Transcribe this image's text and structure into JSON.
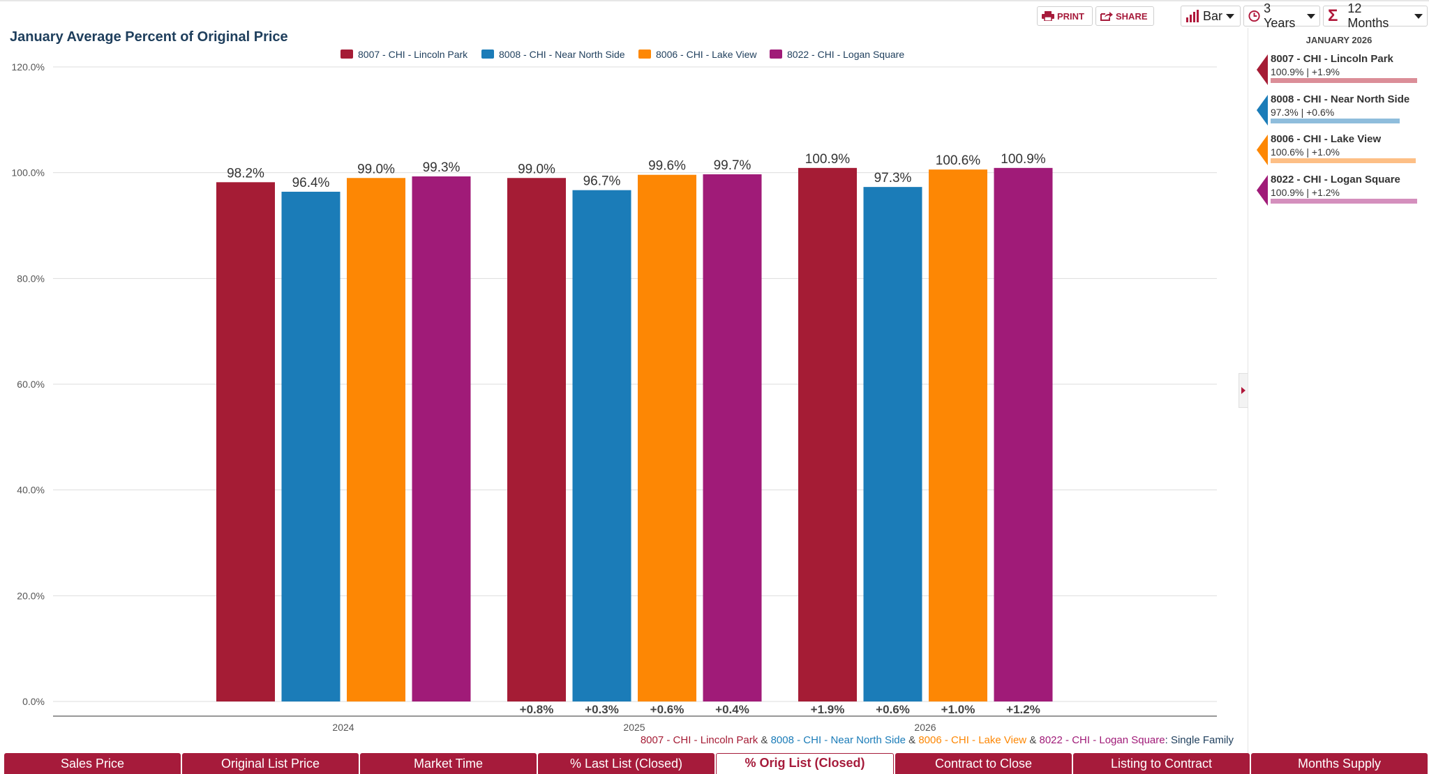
{
  "toolbar": {
    "print_label": "PRINT",
    "share_label": "SHARE",
    "chart_type_label": "Bar",
    "period_label": "3 Years",
    "aggregate_label": "12 Months",
    "aggregate_symbol": "Σ"
  },
  "chart_data": {
    "type": "bar",
    "title": "January Average Percent of Original Price",
    "categories": [
      "2024",
      "2025",
      "2026"
    ],
    "ylim": [
      0,
      120
    ],
    "y_ticks": [
      "0.0%",
      "20.0%",
      "40.0%",
      "60.0%",
      "80.0%",
      "100.0%",
      "120.0%"
    ],
    "y_tick_values": [
      0,
      20,
      40,
      60,
      80,
      100,
      120
    ],
    "grid": true,
    "legend_position": "top-center",
    "series": [
      {
        "name": "8007 - CHI - Lincoln Park",
        "color": "#a51c35",
        "values": [
          98.2,
          99.0,
          100.9
        ],
        "labels": [
          "98.2%",
          "99.0%",
          "100.9%"
        ],
        "changes": [
          "",
          "+0.8%",
          "+1.9%"
        ]
      },
      {
        "name": "8008 - CHI - Near North Side",
        "color": "#1b7cb8",
        "values": [
          96.4,
          96.7,
          97.3
        ],
        "labels": [
          "96.4%",
          "96.7%",
          "97.3%"
        ],
        "changes": [
          "",
          "+0.3%",
          "+0.6%"
        ]
      },
      {
        "name": "8006 - CHI - Lake View",
        "color": "#fd8704",
        "values": [
          99.0,
          99.6,
          100.6
        ],
        "labels": [
          "99.0%",
          "99.6%",
          "100.6%"
        ],
        "changes": [
          "",
          "+0.6%",
          "+1.0%"
        ]
      },
      {
        "name": "8022 - CHI - Logan Square",
        "color": "#a01b78",
        "values": [
          99.3,
          99.7,
          100.9
        ],
        "labels": [
          "99.3%",
          "99.7%",
          "100.9%"
        ],
        "changes": [
          "",
          "+0.4%",
          "+1.2%"
        ]
      }
    ]
  },
  "side_panel": {
    "title": "JANUARY 2026",
    "items": [
      {
        "name": "8007 - CHI - Lincoln Park",
        "value_text": "100.9% | +1.9%",
        "color": "#a51c35",
        "light_color": "#db8e98",
        "bar_fraction": 1.0
      },
      {
        "name": "8008 - CHI - Near North Side",
        "value_text": "97.3% | +0.6%",
        "color": "#1b7cb8",
        "light_color": "#8fbddc",
        "bar_fraction": 0.88
      },
      {
        "name": "8006 - CHI - Lake View",
        "value_text": "100.6% | +1.0%",
        "color": "#fd8704",
        "light_color": "#fdbf86",
        "bar_fraction": 0.99
      },
      {
        "name": "8022 - CHI - Logan Square",
        "value_text": "100.9% | +1.2%",
        "color": "#a01b78",
        "light_color": "#d48fbd",
        "bar_fraction": 1.0
      }
    ]
  },
  "footer": {
    "names": [
      "8007 - CHI - Lincoln Park",
      "8008 - CHI - Near North Side",
      "8006 - CHI - Lake View",
      "8022 - CHI - Logan Square"
    ],
    "separator": " & ",
    "suffix": ": Single Family",
    "colors": [
      "#a51c35",
      "#1b7cb8",
      "#fd8704",
      "#a01b78"
    ]
  },
  "tabs": [
    {
      "label": "Sales Price",
      "active": false
    },
    {
      "label": "Original List Price",
      "active": false
    },
    {
      "label": "Market Time",
      "active": false
    },
    {
      "label": "% Last List (Closed)",
      "active": false
    },
    {
      "label": "% Orig List (Closed)",
      "active": true
    },
    {
      "label": "Contract to Close",
      "active": false
    },
    {
      "label": "Listing to Contract",
      "active": false
    },
    {
      "label": "Months Supply",
      "active": false
    }
  ]
}
